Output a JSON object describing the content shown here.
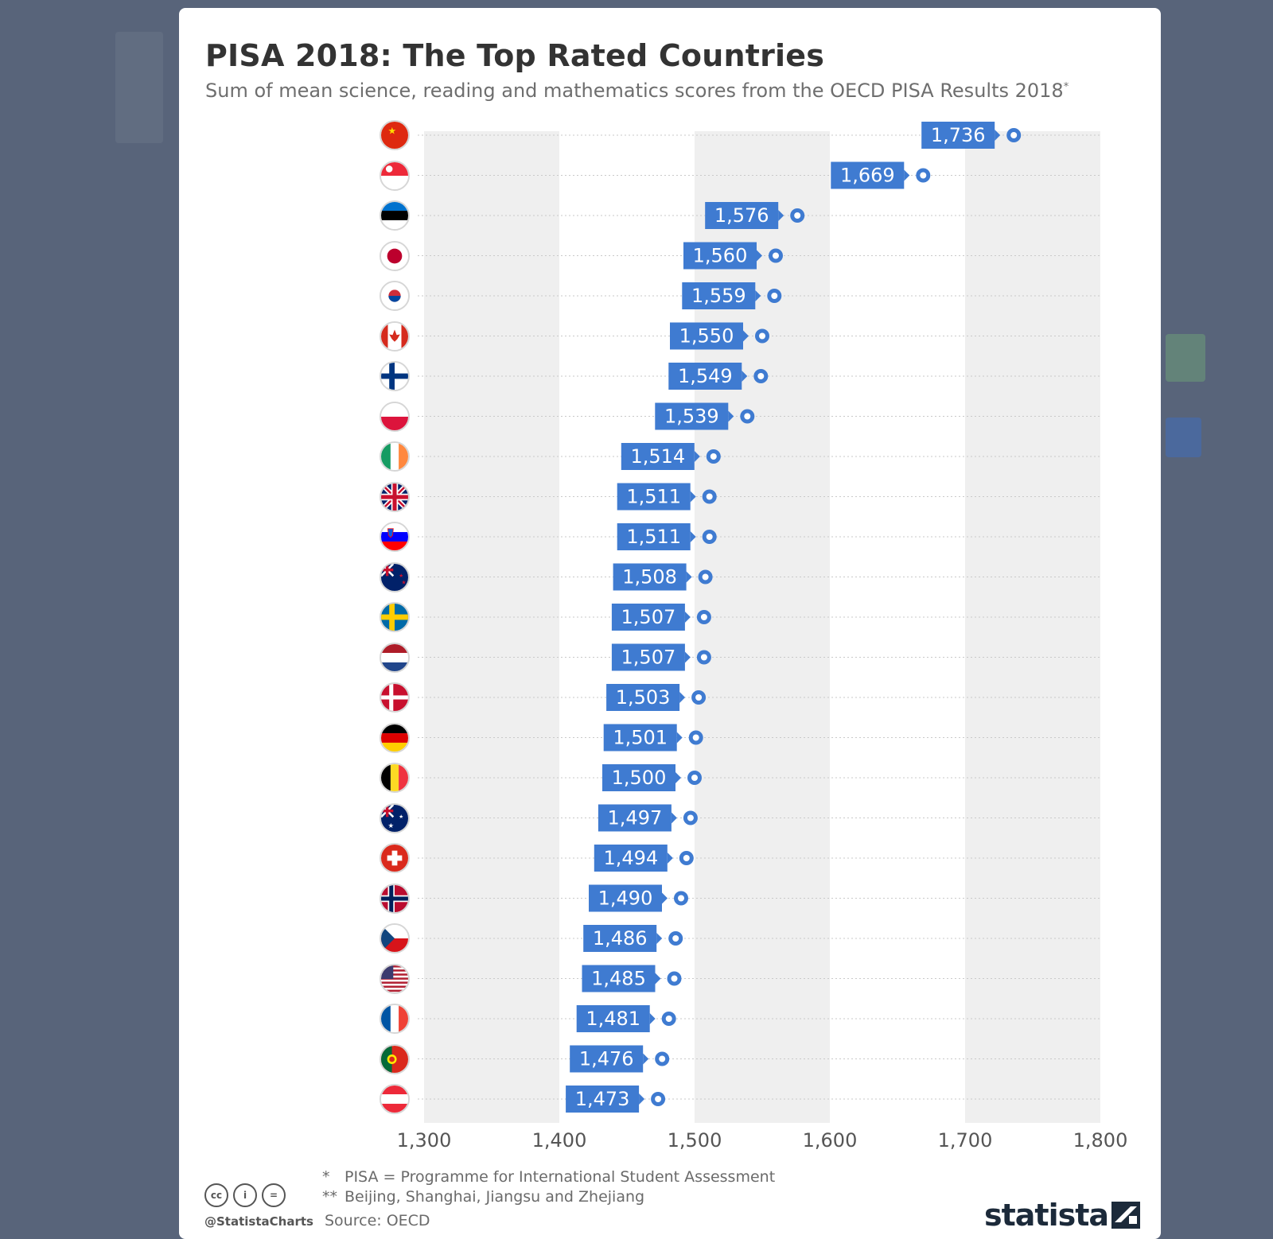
{
  "header": {
    "title": "PISA 2018: The Top Rated Countries",
    "subtitle": "Sum of mean science, reading and mathematics scores from the OECD PISA Results 2018",
    "subtitle_mark": "*"
  },
  "chart_data": {
    "type": "bar",
    "title": "PISA 2018: The Top Rated Countries",
    "subtitle": "Sum of mean science, reading and mathematics scores from the OECD PISA Results 2018*",
    "orientation": "horizontal",
    "categories": [
      "China",
      "Singapore",
      "Estonia",
      "Japan",
      "South Korea",
      "Canada",
      "Finland",
      "Poland",
      "Ireland",
      "United Kingdom",
      "Slovenia",
      "New Zealand",
      "Sweden",
      "Netherlands",
      "Denmark",
      "Germany",
      "Belgium",
      "Australia",
      "Switzerland",
      "Norway",
      "Czech Republic",
      "United States",
      "France",
      "Portugal",
      "Austria"
    ],
    "category_marks": [
      "**",
      "",
      "",
      "",
      "",
      "",
      "",
      "",
      "",
      "",
      "",
      "",
      "",
      "",
      "",
      "",
      "",
      "",
      "",
      "",
      "",
      "",
      "",
      "",
      ""
    ],
    "values": [
      1736,
      1669,
      1576,
      1560,
      1559,
      1550,
      1549,
      1539,
      1514,
      1511,
      1511,
      1508,
      1507,
      1507,
      1503,
      1501,
      1500,
      1497,
      1494,
      1490,
      1486,
      1485,
      1481,
      1476,
      1473
    ],
    "value_labels": [
      "1,736",
      "1,669",
      "1,576",
      "1,560",
      "1,559",
      "1,550",
      "1,549",
      "1,539",
      "1,514",
      "1,511",
      "1,511",
      "1,508",
      "1,507",
      "1,507",
      "1,503",
      "1,501",
      "1,500",
      "1,497",
      "1,494",
      "1,490",
      "1,486",
      "1,485",
      "1,481",
      "1,476",
      "1,473"
    ],
    "xlim": [
      1300,
      1800
    ],
    "xticks": [
      "1,300",
      "1,400",
      "1,500",
      "1,600",
      "1,700",
      "1,800"
    ],
    "xtick_values": [
      1300,
      1400,
      1500,
      1600,
      1700,
      1800
    ],
    "xlabel": "",
    "ylabel": "",
    "grid": "vertical alternating bands",
    "colors": {
      "label_box": "#3f7bd1",
      "dot": "#3f7bd1",
      "band": "#efefef"
    }
  },
  "footnotes": {
    "note1_mark": "*",
    "note1": "PISA = Programme for International Student Assessment",
    "note2_mark": "**",
    "note2": "Beijing, Shanghai, Jiangsu and Zhejiang",
    "source": "Source: OECD"
  },
  "branding": {
    "handle": "@StatistaCharts",
    "brand": "statista",
    "cc_icons": [
      "cc-icon",
      "attribution-icon",
      "no-derivatives-icon"
    ],
    "cc_text": [
      "cc",
      "i",
      "="
    ]
  }
}
